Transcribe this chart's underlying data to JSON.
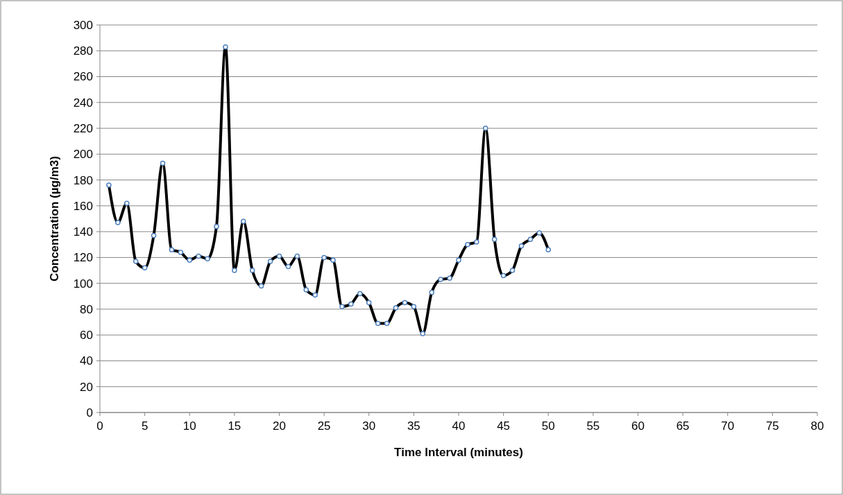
{
  "chart_data": {
    "type": "line",
    "xlabel": "Time Interval (minutes)",
    "ylabel": "Concentration (µg/m3)",
    "x": [
      1,
      2,
      3,
      4,
      5,
      6,
      7,
      8,
      9,
      10,
      11,
      12,
      13,
      14,
      15,
      16,
      17,
      18,
      19,
      20,
      21,
      22,
      23,
      24,
      25,
      26,
      27,
      28,
      29,
      30,
      31,
      32,
      33,
      34,
      35,
      36,
      37,
      38,
      39,
      40,
      41,
      42,
      43,
      44,
      45,
      46,
      47,
      48,
      49,
      50
    ],
    "series": [
      {
        "color": "#000000",
        "values": [
          176,
          147,
          162,
          117,
          112,
          137,
          193,
          126,
          124,
          118,
          121,
          119,
          144,
          283,
          110,
          148,
          110,
          98,
          117,
          121,
          113,
          121,
          95,
          91,
          120,
          118,
          82,
          84,
          92,
          85,
          69,
          69,
          81,
          85,
          82,
          61,
          93,
          103,
          104,
          118,
          130,
          132,
          220,
          134,
          106,
          110,
          129,
          134,
          139,
          126
        ]
      }
    ],
    "xlim": [
      0,
      80
    ],
    "xticks": [
      0,
      5,
      10,
      15,
      20,
      25,
      30,
      35,
      40,
      45,
      50,
      55,
      60,
      65,
      70,
      75,
      80
    ],
    "ylim": [
      0,
      300
    ],
    "yticks": [
      0,
      20,
      40,
      60,
      80,
      100,
      120,
      140,
      160,
      180,
      200,
      220,
      240,
      260,
      280,
      300
    ],
    "grid": "y",
    "marker": "circle",
    "line_style": "solid"
  }
}
